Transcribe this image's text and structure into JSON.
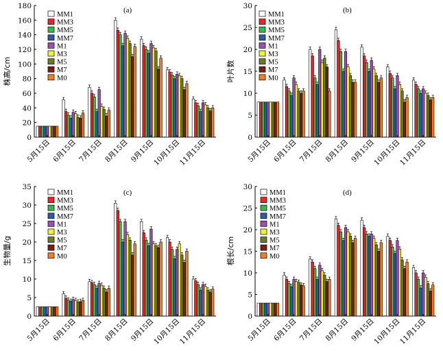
{
  "colors": {
    "MM1": "#ffffff",
    "MM3": "#e8262b",
    "MM5": "#3cb54a",
    "MM7": "#2e5aa8",
    "M1": "#9b4fb0",
    "M3": "#f2ee3d",
    "M5": "#6b7a2c",
    "M7": "#7a1f16",
    "M0": "#f07f22"
  },
  "chart_data": [
    {
      "type": "bar",
      "panel": "(a)",
      "ylabel": "株高/cm",
      "ylim": [
        0,
        180
      ],
      "yticks": [
        0,
        20,
        40,
        60,
        80,
        100,
        120,
        140,
        160,
        180
      ],
      "categories": [
        "5月15日",
        "6月15日",
        "7月15日",
        "8月15日",
        "9月15日",
        "10月15日",
        "11月15日"
      ],
      "series": [
        {
          "name": "MM1",
          "values": [
            15,
            51,
            68,
            160,
            134,
            92,
            52
          ]
        },
        {
          "name": "MM3",
          "values": [
            15,
            35,
            60,
            146,
            125,
            89,
            47
          ]
        },
        {
          "name": "MM5",
          "values": [
            15,
            30,
            55,
            140,
            120,
            85,
            43
          ]
        },
        {
          "name": "MM7",
          "values": [
            15,
            26,
            35,
            125,
            115,
            80,
            35
          ]
        },
        {
          "name": "M1",
          "values": [
            15,
            34,
            65,
            142,
            128,
            86,
            47
          ]
        },
        {
          "name": "M3",
          "values": [
            15,
            32,
            42,
            135,
            122,
            84,
            44
          ]
        },
        {
          "name": "M5",
          "values": [
            15,
            27,
            38,
            128,
            118,
            80,
            40
          ]
        },
        {
          "name": "M7",
          "values": [
            15,
            26,
            29,
            110,
            93,
            65,
            36
          ]
        },
        {
          "name": "M0",
          "values": [
            15,
            33,
            37,
            124,
            108,
            73,
            40
          ]
        }
      ]
    },
    {
      "type": "bar",
      "panel": "(b)",
      "ylabel": "叶片数",
      "ylim": [
        0,
        30
      ],
      "yticks": [
        0,
        5,
        10,
        15,
        20,
        25,
        30
      ],
      "categories": [
        "5月15日",
        "6月15日",
        "7月15日",
        "8月15日",
        "9月15日",
        "10月15日",
        "11月15日"
      ],
      "series": [
        {
          "name": "MM1",
          "values": [
            8,
            13,
            20,
            24.5,
            20.5,
            16,
            13
          ]
        },
        {
          "name": "MM3",
          "values": [
            8,
            11.5,
            18.5,
            22,
            18.5,
            14.5,
            12
          ]
        },
        {
          "name": "MM5",
          "values": [
            8,
            10.5,
            13.5,
            19.5,
            17,
            13.5,
            11
          ]
        },
        {
          "name": "MM7",
          "values": [
            8,
            9.5,
            12,
            15,
            15,
            11,
            10
          ]
        },
        {
          "name": "M1",
          "values": [
            8,
            13.5,
            20,
            19.5,
            17.5,
            14,
            11
          ]
        },
        {
          "name": "M3",
          "values": [
            8,
            12,
            17,
            16,
            15.5,
            12,
            10
          ]
        },
        {
          "name": "M5",
          "values": [
            8,
            10.5,
            18,
            14,
            14,
            10.5,
            9.5
          ]
        },
        {
          "name": "M7",
          "values": [
            8,
            10,
            16,
            12.5,
            12.5,
            8,
            8.5
          ]
        },
        {
          "name": "M0",
          "values": [
            8,
            10.5,
            10.5,
            12.5,
            13.5,
            9,
            9
          ]
        }
      ]
    },
    {
      "type": "bar",
      "panel": "(c)",
      "ylabel": "生物量/g",
      "ylim": [
        0,
        35
      ],
      "yticks": [
        0,
        5,
        10,
        15,
        20,
        25,
        30,
        35
      ],
      "categories": [
        "5月15日",
        "6月15日",
        "7月15日",
        "8月15日",
        "9月15日",
        "10月15日",
        "11月15日"
      ],
      "series": [
        {
          "name": "MM1",
          "values": [
            2.5,
            6,
            9.3,
            30.5,
            25.5,
            21.2,
            10
          ]
        },
        {
          "name": "MM3",
          "values": [
            2.5,
            4.8,
            9,
            28.5,
            22.5,
            20,
            9.5
          ]
        },
        {
          "name": "MM5",
          "values": [
            2.5,
            4.3,
            8.5,
            25.5,
            20.5,
            18,
            8.5
          ]
        },
        {
          "name": "MM7",
          "values": [
            2.5,
            4,
            7.5,
            20,
            19,
            15.5,
            7
          ]
        },
        {
          "name": "M1",
          "values": [
            2.5,
            4.5,
            8.8,
            25.5,
            23.5,
            18,
            8.5
          ]
        },
        {
          "name": "M3",
          "values": [
            2.5,
            4.2,
            8.3,
            22,
            19.5,
            19.5,
            8
          ]
        },
        {
          "name": "M5",
          "values": [
            2.5,
            3.8,
            7.5,
            20.5,
            19,
            16.5,
            7
          ]
        },
        {
          "name": "M7",
          "values": [
            2.5,
            3.9,
            6.5,
            16.5,
            18.5,
            14.5,
            6.5
          ]
        },
        {
          "name": "M0",
          "values": [
            2.5,
            4.2,
            7.5,
            19.5,
            20,
            17.5,
            7.3
          ]
        }
      ]
    },
    {
      "type": "bar",
      "panel": "(d)",
      "ylabel": "根长/cm",
      "ylim": [
        0,
        30
      ],
      "yticks": [
        0,
        5,
        10,
        15,
        20,
        25,
        30
      ],
      "categories": [
        "5月15日",
        "6月15日",
        "7月15日",
        "8月15日",
        "9月15日",
        "10月15日",
        "11月15日"
      ],
      "series": [
        {
          "name": "MM1",
          "values": [
            3,
            9.5,
            13.2,
            22.5,
            22.2,
            18.5,
            11.2
          ]
        },
        {
          "name": "MM3",
          "values": [
            3,
            8.5,
            12.5,
            21,
            20.5,
            17.5,
            10
          ]
        },
        {
          "name": "MM5",
          "values": [
            3,
            7.5,
            11,
            19.5,
            19,
            16,
            8.5
          ]
        },
        {
          "name": "MM7",
          "values": [
            3,
            6.8,
            8.5,
            17.5,
            18.5,
            14.5,
            6.5
          ]
        },
        {
          "name": "M1",
          "values": [
            3,
            8.5,
            11.8,
            20.5,
            19,
            17.5,
            10
          ]
        },
        {
          "name": "M3",
          "values": [
            3,
            8,
            10.5,
            19.5,
            18,
            15.5,
            9
          ]
        },
        {
          "name": "M5",
          "values": [
            3,
            7.8,
            9.5,
            18.5,
            16.5,
            13,
            7.5
          ]
        },
        {
          "name": "M7",
          "values": [
            3,
            7.2,
            8,
            17,
            15,
            11,
            5.8
          ]
        },
        {
          "name": "M0",
          "values": [
            3,
            7,
            8.5,
            18,
            17,
            12.5,
            7.2
          ]
        }
      ]
    }
  ]
}
